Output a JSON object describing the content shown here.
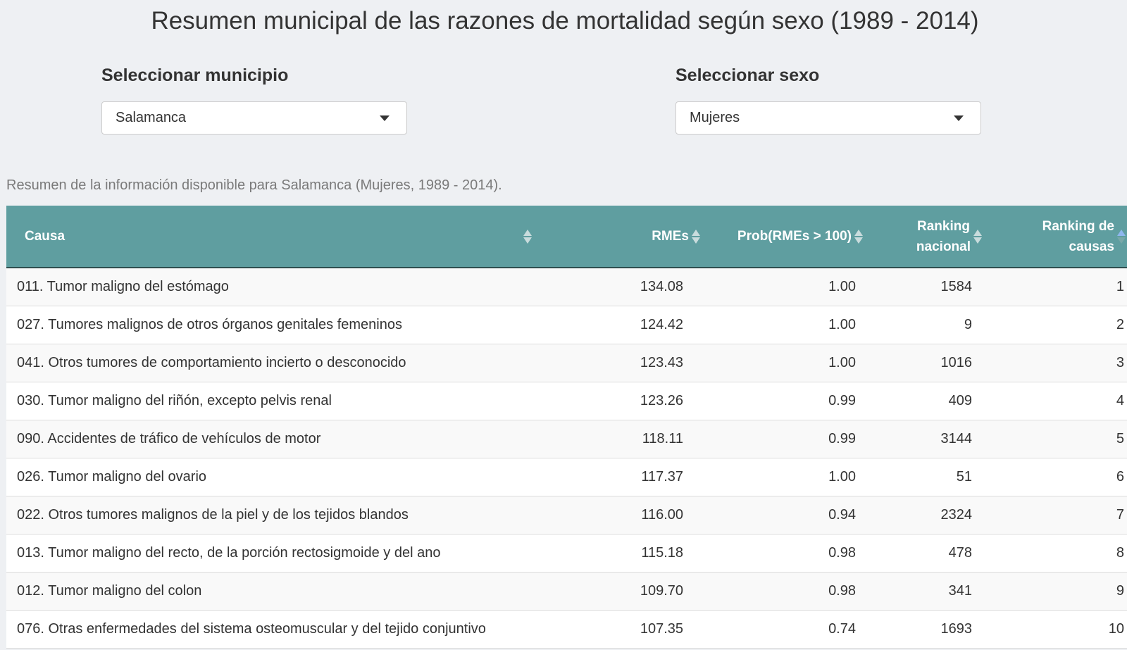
{
  "title": "Resumen municipal de las razones de mortalidad según sexo (1989 - 2014)",
  "municipio_select": {
    "label": "Seleccionar municipio",
    "value": "Salamanca",
    "icon": "caret-down-icon"
  },
  "sexo_select": {
    "label": "Seleccionar sexo",
    "value": "Mujeres",
    "icon": "caret-down-icon"
  },
  "summary": "Resumen de la información disponible para Salamanca (Mujeres, 1989 - 2014).",
  "table": {
    "columns": [
      {
        "line1": "Causa",
        "line2": ""
      },
      {
        "line1": "RMEs",
        "line2": ""
      },
      {
        "line1": "Prob(RMEs > 100)",
        "line2": ""
      },
      {
        "line1": "Ranking",
        "line2": "nacional"
      },
      {
        "line1": "Ranking de",
        "line2": "causas"
      }
    ],
    "sort_icon": "sort-arrows-icon",
    "rows": [
      [
        "011. Tumor maligno del estómago",
        "134.08",
        "1.00",
        "1584",
        "1"
      ],
      [
        "027. Tumores malignos de otros órganos genitales femeninos",
        "124.42",
        "1.00",
        "9",
        "2"
      ],
      [
        "041. Otros tumores de comportamiento incierto o desconocido",
        "123.43",
        "1.00",
        "1016",
        "3"
      ],
      [
        "030. Tumor maligno del riñón, excepto pelvis renal",
        "123.26",
        "0.99",
        "409",
        "4"
      ],
      [
        "090. Accidentes de tráfico de vehículos de motor",
        "118.11",
        "0.99",
        "3144",
        "5"
      ],
      [
        "026. Tumor maligno del ovario",
        "117.37",
        "1.00",
        "51",
        "6"
      ],
      [
        "022. Otros tumores malignos de la piel y de los tejidos blandos",
        "116.00",
        "0.94",
        "2324",
        "7"
      ],
      [
        "013. Tumor maligno del recto, de la porción rectosigmoide y del ano",
        "115.18",
        "0.98",
        "478",
        "8"
      ],
      [
        "012. Tumor maligno del colon",
        "109.70",
        "0.98",
        "341",
        "9"
      ],
      [
        "076. Otras enfermedades del sistema osteomuscular y del tejido conjuntivo",
        "107.35",
        "0.74",
        "1693",
        "10"
      ]
    ]
  },
  "colors": {
    "header_bg": "#5f9ea0",
    "page_bg": "#eef0f3",
    "header_text": "#ffffff"
  }
}
